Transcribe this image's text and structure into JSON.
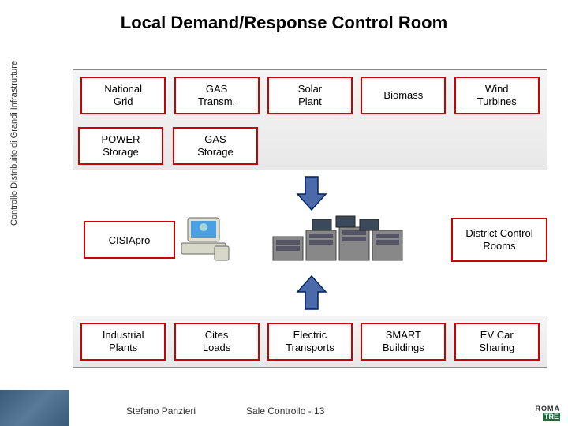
{
  "title": "Local Demand/Response Control Room",
  "sidebar_label": "Controllo Distribuito di Grandi Infrastrutture",
  "top_panel": {
    "row1": [
      {
        "label": "National\nGrid"
      },
      {
        "label": "GAS\nTransm."
      },
      {
        "label": "Solar\nPlant"
      },
      {
        "label": "Biomass"
      },
      {
        "label": "Wind\nTurbines"
      }
    ],
    "row2": [
      {
        "label": "POWER\nStorage"
      },
      {
        "label": "GAS\nStorage"
      }
    ]
  },
  "cisia": {
    "label": "CISIApro"
  },
  "district": {
    "label": "District Control\nRooms"
  },
  "bottom_panel": {
    "row": [
      {
        "label": "Industrial\nPlants"
      },
      {
        "label": "Cites\nLoads"
      },
      {
        "label": "Electric\nTransports"
      },
      {
        "label": "SMART\nBuildings"
      },
      {
        "label": "EV Car\nSharing"
      }
    ]
  },
  "arrows": {
    "down": {
      "fill": "#4a6aaa",
      "stroke": "#002060"
    },
    "up": {
      "fill": "#4a6aaa",
      "stroke": "#002060"
    }
  },
  "colors": {
    "node_border": "#cc0000",
    "panel_bg_top": "#f5f5f5",
    "panel_bg_bottom": "#e8e8e8"
  },
  "footer": {
    "author": "Stefano Panzieri",
    "page_label": "Sale Controllo",
    "page_sep": " - ",
    "page_num": "13",
    "logo_line1": "ROMA",
    "logo_line2": "TRE"
  }
}
